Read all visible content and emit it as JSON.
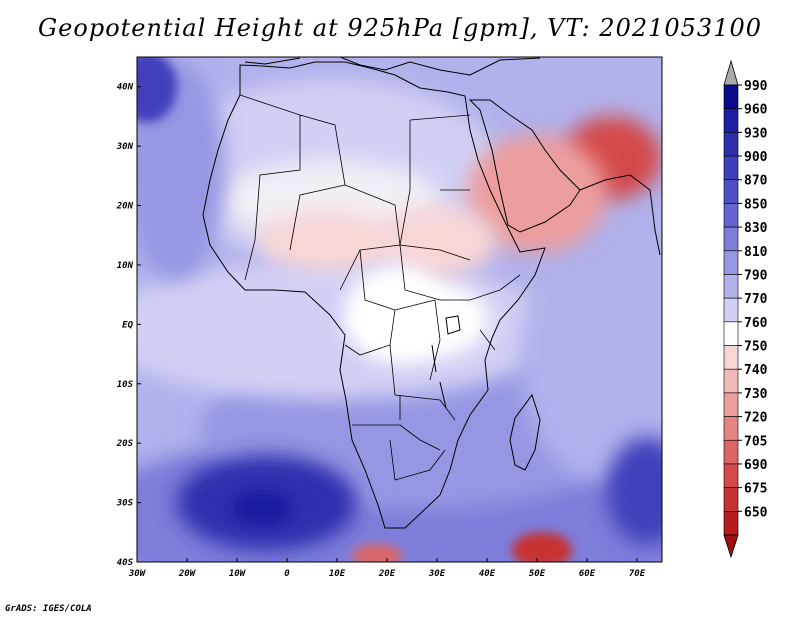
{
  "title": "Geopotential Height at 925hPa [gpm], VT: 2021053100",
  "credit": "GrADS: IGES/COLA",
  "chart_data": {
    "type": "heatmap",
    "title": "Geopotential Height at 925hPa [gpm], VT: 2021053100",
    "variable": "Geopotential Height",
    "level": "925hPa",
    "units": "gpm",
    "valid_time": "2021053100",
    "lon_range": [
      -30,
      75
    ],
    "lat_range": [
      -40,
      45
    ],
    "x_ticks": [
      {
        "value": -30,
        "label": "30W"
      },
      {
        "value": -20,
        "label": "20W"
      },
      {
        "value": -10,
        "label": "10W"
      },
      {
        "value": 0,
        "label": "0"
      },
      {
        "value": 10,
        "label": "10E"
      },
      {
        "value": 20,
        "label": "20E"
      },
      {
        "value": 30,
        "label": "30E"
      },
      {
        "value": 40,
        "label": "40E"
      },
      {
        "value": 50,
        "label": "50E"
      },
      {
        "value": 60,
        "label": "60E"
      },
      {
        "value": 70,
        "label": "70E"
      }
    ],
    "y_ticks": [
      {
        "value": 40,
        "label": "40N"
      },
      {
        "value": 30,
        "label": "30N"
      },
      {
        "value": 20,
        "label": "20N"
      },
      {
        "value": 10,
        "label": "10N"
      },
      {
        "value": 0,
        "label": "EQ"
      },
      {
        "value": -10,
        "label": "10S"
      },
      {
        "value": -20,
        "label": "20S"
      },
      {
        "value": -30,
        "label": "30S"
      },
      {
        "value": -40,
        "label": "40S"
      }
    ],
    "colorbar": [
      {
        "label": "990",
        "color": "#0a0a8a"
      },
      {
        "label": "960",
        "color": "#1e1ea0"
      },
      {
        "label": "930",
        "color": "#2f2fae"
      },
      {
        "label": "900",
        "color": "#3f3fbb"
      },
      {
        "label": "870",
        "color": "#5050c6"
      },
      {
        "label": "850",
        "color": "#6565d1"
      },
      {
        "label": "830",
        "color": "#7d7dda"
      },
      {
        "label": "810",
        "color": "#9696e3"
      },
      {
        "label": "790",
        "color": "#b1b1ec"
      },
      {
        "label": "770",
        "color": "#d0d0f5"
      },
      {
        "label": "760",
        "color": "#ffffff"
      },
      {
        "label": "750",
        "color": "#f8d6d6"
      },
      {
        "label": "740",
        "color": "#f2b9b9"
      },
      {
        "label": "730",
        "color": "#ec9d9d"
      },
      {
        "label": "720",
        "color": "#e58282"
      },
      {
        "label": "705",
        "color": "#dc6565"
      },
      {
        "label": "690",
        "color": "#d34a4a"
      },
      {
        "label": "675",
        "color": "#c73232"
      },
      {
        "label": "650",
        "color": "#b81c1c"
      }
    ],
    "colorbar_over_color": "#aaaaaa",
    "colorbar_under_color": "#a01010",
    "features": [
      {
        "name": "heat-low-arabia-iran",
        "lon": 65,
        "lat": 28,
        "value": 690,
        "rx": 10,
        "ry": 7
      },
      {
        "name": "heat-low-arabia",
        "lon": 50,
        "lat": 22,
        "value": 730,
        "rx": 14,
        "ry": 10
      },
      {
        "name": "heat-low-sudan",
        "lon": 30,
        "lat": 14,
        "value": 745,
        "rx": 12,
        "ry": 6
      },
      {
        "name": "heat-low-sahel",
        "lon": 8,
        "lat": 14,
        "value": 752,
        "rx": 14,
        "ry": 5
      },
      {
        "name": "central-africa-ridge",
        "lon": 22,
        "lat": 2,
        "value": 762,
        "rx": 10,
        "ry": 8
      },
      {
        "name": "south-atlantic-high",
        "lon": -4,
        "lat": -30,
        "value": 930,
        "rx": 18,
        "ry": 8
      },
      {
        "name": "south-atlantic-high-core",
        "lon": -5,
        "lat": -31,
        "value": 960,
        "rx": 6,
        "ry": 3
      },
      {
        "name": "indian-ocean-high",
        "lon": 72,
        "lat": -28,
        "value": 900,
        "rx": 8,
        "ry": 9
      },
      {
        "name": "azores-ridge",
        "lon": -28,
        "lat": 40,
        "value": 900,
        "rx": 6,
        "ry": 6
      },
      {
        "name": "cutoff-low-madagascar",
        "lon": 51,
        "lat": -38,
        "value": 675,
        "rx": 6,
        "ry": 3
      },
      {
        "name": "cutoff-low-cape",
        "lon": 18,
        "lat": -39,
        "value": 705,
        "rx": 5,
        "ry": 2
      }
    ]
  }
}
